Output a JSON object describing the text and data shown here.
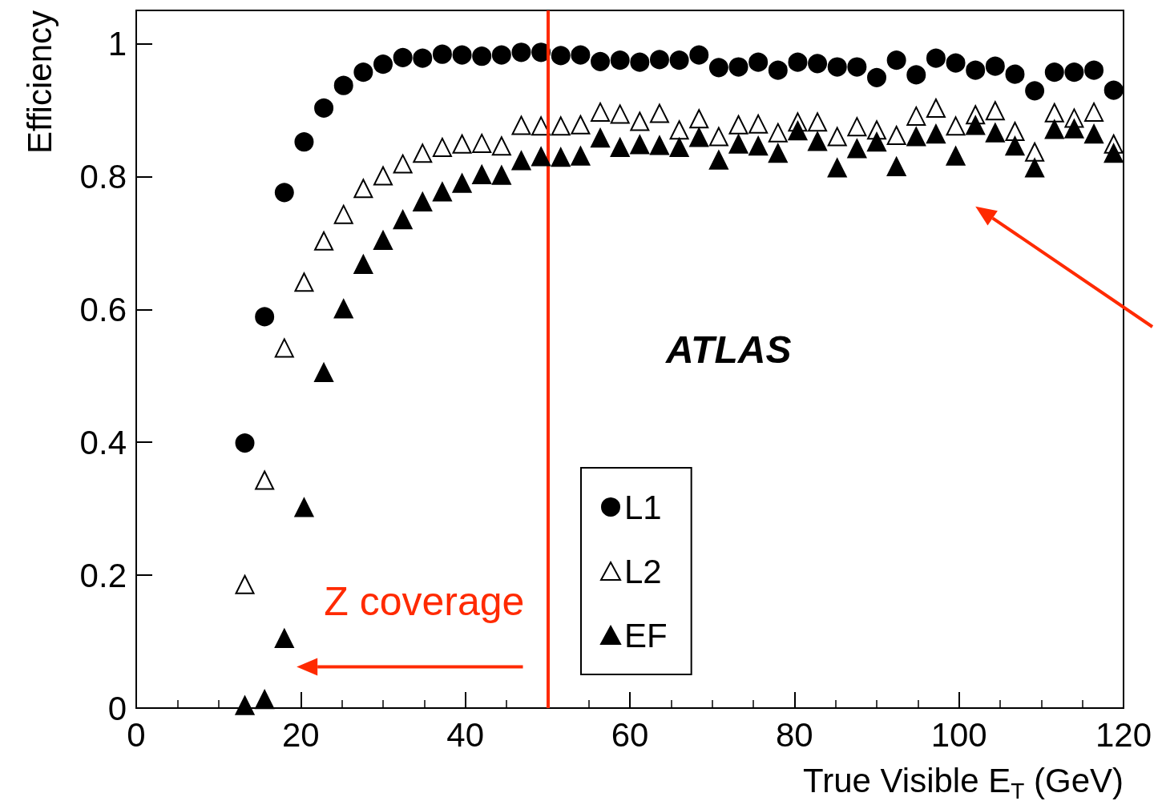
{
  "chart_data": {
    "type": "scatter",
    "xlabel": "True Visible E$_{T}$ (GeV)",
    "ylabel": "Efficiency",
    "xlim": [
      0,
      120
    ],
    "xticks": [
      0,
      20,
      40,
      60,
      80,
      100,
      120
    ],
    "ylim": [
      0,
      1.05
    ],
    "yticks": [
      0,
      0.2,
      0.4,
      0.6,
      0.8,
      1
    ],
    "grid": false,
    "legend": "bottom",
    "x": [
      13.2,
      15.6,
      18.0,
      20.4,
      22.8,
      25.2,
      27.6,
      30.0,
      32.4,
      34.8,
      37.2,
      39.6,
      42.0,
      44.4,
      46.8,
      49.2,
      51.6,
      54.0,
      56.4,
      58.8,
      61.2,
      63.6,
      66.0,
      68.4,
      70.8,
      73.2,
      75.6,
      78.0,
      80.4,
      82.8,
      85.2,
      87.6,
      90.0,
      92.4,
      94.8,
      97.2,
      99.6,
      102.0,
      104.4,
      106.8,
      109.2,
      111.6,
      114.0,
      116.4,
      118.8
    ],
    "series": [
      {
        "name": "L1",
        "color": "#000000",
        "marker": "circle",
        "values": [
          0.399,
          0.589,
          0.776,
          0.852,
          0.903,
          0.937,
          0.957,
          0.969,
          0.979,
          0.978,
          0.984,
          0.983,
          0.981,
          0.983,
          0.987,
          0.987,
          0.982,
          0.983,
          0.973,
          0.975,
          0.972,
          0.976,
          0.975,
          0.983,
          0.964,
          0.965,
          0.972,
          0.96,
          0.972,
          0.97,
          0.965,
          0.965,
          0.949,
          0.975,
          0.953,
          0.978,
          0.971,
          0.96,
          0.966,
          0.954,
          0.929,
          0.957,
          0.957,
          0.96,
          0.93
        ]
      },
      {
        "name": "L2",
        "color": "#ffffff",
        "marker": "triangle",
        "values": [
          0.186,
          0.343,
          0.542,
          0.641,
          0.703,
          0.743,
          0.782,
          0.801,
          0.819,
          0.835,
          0.844,
          0.849,
          0.85,
          0.846,
          0.877,
          0.876,
          0.876,
          0.878,
          0.897,
          0.894,
          0.883,
          0.895,
          0.87,
          0.887,
          0.86,
          0.878,
          0.879,
          0.866,
          0.882,
          0.882,
          0.86,
          0.875,
          0.87,
          0.862,
          0.891,
          0.903,
          0.876,
          0.893,
          0.899,
          0.868,
          0.837,
          0.896,
          0.888,
          0.897,
          0.849
        ]
      },
      {
        "name": "EF",
        "color": "#000000",
        "marker": "triangle",
        "values": [
          0.004,
          0.013,
          0.105,
          0.302,
          0.505,
          0.601,
          0.668,
          0.704,
          0.735,
          0.762,
          0.777,
          0.79,
          0.803,
          0.802,
          0.824,
          0.83,
          0.829,
          0.831,
          0.858,
          0.844,
          0.848,
          0.847,
          0.844,
          0.859,
          0.825,
          0.849,
          0.846,
          0.835,
          0.869,
          0.853,
          0.813,
          0.842,
          0.852,
          0.815,
          0.86,
          0.864,
          0.831,
          0.877,
          0.866,
          0.846,
          0.813,
          0.871,
          0.872,
          0.864,
          0.835
        ]
      }
    ],
    "ref_lines": [
      {
        "axis": "x",
        "value": 50,
        "label": null,
        "color": "#ff2a00"
      }
    ],
    "annotations": [
      "ATLAS",
      "Z coverage"
    ]
  }
}
